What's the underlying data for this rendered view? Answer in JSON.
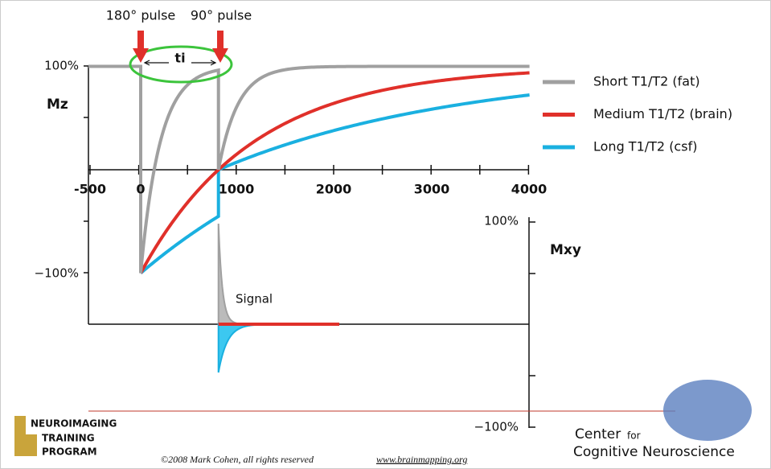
{
  "header": {
    "pulse_labels": [
      "180° pulse",
      "90° pulse"
    ],
    "interval_label": "ti"
  },
  "mz_axis": {
    "label": "Mz",
    "ticks": [
      "100%",
      "−100%"
    ]
  },
  "time_axis": {
    "ticks": [
      "-500",
      "0",
      "1000",
      "2000",
      "3000",
      "4000"
    ]
  },
  "mxy_axis": {
    "label": "Mxy",
    "ticks": [
      "100%",
      "−100%"
    ]
  },
  "signal_label": "Signal",
  "legend": [
    {
      "label": "Short T1/T2 (fat)",
      "color": "#a0a0a0"
    },
    {
      "label": "Medium T1/T2 (brain)",
      "color": "#e0302a"
    },
    {
      "label": "Long T1/T2 (csf)",
      "color": "#1ab0e0"
    }
  ],
  "footer": {
    "program": [
      "NEUROIMAGING",
      "TRAINING",
      "PROGRAM"
    ],
    "copyright": "©2008 Mark Cohen, all rights reserved",
    "url": "www.brainmapping.org",
    "center": [
      "Center",
      "for",
      "Cognitive Neuroscience"
    ]
  }
}
